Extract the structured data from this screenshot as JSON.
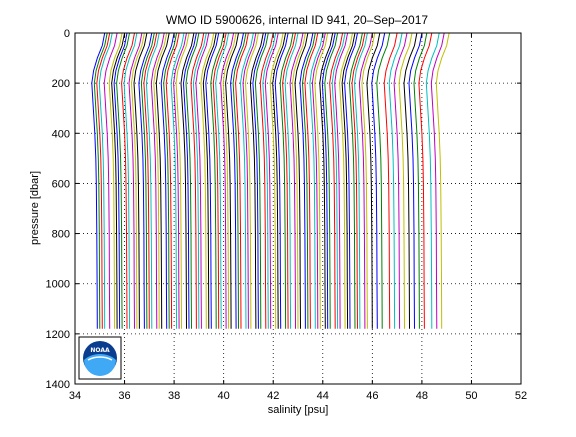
{
  "chart_data": {
    "type": "line",
    "title": "WMO ID 5900626, internal ID 941, 20–Sep–2017",
    "xlabel": "salinity [psu]",
    "ylabel": "pressure [dbar]",
    "xlim": [
      34,
      52
    ],
    "ylim": [
      1400,
      0
    ],
    "y_reversed": true,
    "xticks": [
      34,
      36,
      38,
      40,
      42,
      44,
      46,
      48,
      50,
      52
    ],
    "yticks": [
      0,
      200,
      400,
      600,
      800,
      1000,
      1200,
      1400
    ],
    "xtick_labels": [
      "34",
      "36",
      "38",
      "40",
      "42",
      "44",
      "46",
      "48",
      "50",
      "52"
    ],
    "ytick_labels": [
      "0",
      "200",
      "400",
      "600",
      "800",
      "1000",
      "1200",
      "1400"
    ],
    "grid": true,
    "legend": "none",
    "logo": {
      "name": "noaa-logo-icon",
      "text": "NOAA"
    },
    "series_colors": [
      "#0000ff",
      "#008000",
      "#ff0000",
      "#00bfbf",
      "#bf00bf",
      "#bfbf00",
      "#000000"
    ],
    "profile_shape": {
      "pressure": [
        0,
        50,
        100,
        150,
        200,
        300,
        400,
        500,
        600,
        800,
        1000,
        1180
      ],
      "salinity_offset": [
        0.4,
        0.3,
        0.1,
        -0.05,
        -0.12,
        -0.06,
        0.0,
        0.04,
        0.06,
        0.08,
        0.09,
        0.1
      ]
    },
    "profile_base_salinity": [
      34.8,
      34.9,
      35.0,
      35.1,
      35.3,
      35.5,
      35.6,
      35.7,
      35.8,
      36.0,
      36.1,
      36.3,
      36.4,
      36.5,
      36.7,
      36.8,
      36.9,
      37.0,
      37.2,
      37.3,
      37.4,
      37.6,
      37.7,
      37.8,
      38.0,
      38.1,
      38.2,
      38.4,
      38.5,
      38.6,
      38.8,
      38.9,
      39.0,
      39.2,
      39.3,
      39.4,
      39.6,
      39.7,
      39.8,
      40.0,
      40.1,
      40.2,
      40.4,
      40.5,
      40.6,
      40.8,
      40.9,
      41.0,
      41.2,
      41.3,
      41.4,
      41.6,
      41.7,
      41.8,
      42.0,
      42.1,
      42.2,
      42.4,
      42.5,
      42.6,
      42.8,
      42.9,
      43.0,
      43.2,
      43.3,
      43.4,
      43.6,
      43.7,
      43.8,
      44.0,
      44.1,
      44.2,
      44.4,
      44.5,
      44.6,
      44.8,
      44.9,
      45.0,
      45.2,
      45.3,
      45.4,
      45.6,
      45.7,
      45.9,
      46.1,
      46.3,
      46.6,
      46.8,
      47.0,
      47.2,
      47.4,
      47.6,
      47.8,
      48.0,
      48.3,
      48.5,
      48.7
    ]
  }
}
